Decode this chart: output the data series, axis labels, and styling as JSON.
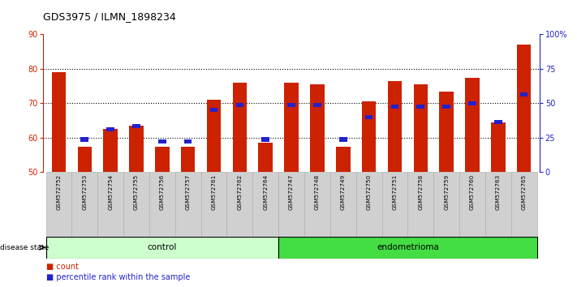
{
  "title": "GDS3975 / ILMN_1898234",
  "samples": [
    "GSM572752",
    "GSM572753",
    "GSM572754",
    "GSM572755",
    "GSM572756",
    "GSM572757",
    "GSM572761",
    "GSM572762",
    "GSM572764",
    "GSM572747",
    "GSM572748",
    "GSM572749",
    "GSM572750",
    "GSM572751",
    "GSM572758",
    "GSM572759",
    "GSM572760",
    "GSM572763",
    "GSM572765"
  ],
  "counts": [
    79,
    57.5,
    62.5,
    63.5,
    57.5,
    57.5,
    71,
    76,
    58.5,
    76,
    75.5,
    57.5,
    70.5,
    76.5,
    75.5,
    73.5,
    77.5,
    64.5,
    87
  ],
  "percentiles": [
    null,
    59.5,
    62.5,
    63.5,
    59,
    59,
    68,
    69.5,
    59.5,
    69.5,
    69.5,
    59.5,
    66,
    69,
    69,
    69,
    70,
    64.5,
    72.5
  ],
  "control_count": 9,
  "endometrioma_count": 10,
  "ylim_left": [
    50,
    90
  ],
  "ylim_right": [
    0,
    100
  ],
  "yticks_left": [
    50,
    60,
    70,
    80,
    90
  ],
  "yticks_right": [
    0,
    25,
    50,
    75,
    100
  ],
  "ytick_labels_right": [
    "0",
    "25",
    "50",
    "75",
    "100%"
  ],
  "bar_color": "#cc2200",
  "percentile_color": "#2222cc",
  "control_bg": "#ccffcc",
  "endometrioma_bg": "#44dd44",
  "bar_width": 0.55,
  "bar_base": 50,
  "grid_color": "black",
  "grid_linestyle": "dotted",
  "grid_linewidth": 0.8,
  "title_fontsize": 9,
  "tick_fontsize": 7,
  "sample_area_color": "#d0d0d0",
  "sample_border_color": "#aaaaaa"
}
